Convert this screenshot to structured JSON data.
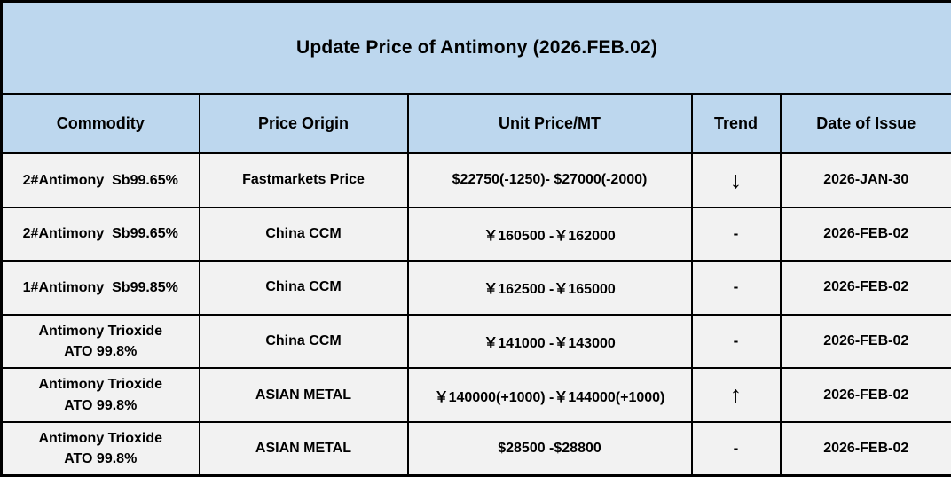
{
  "title": "Update Price of Antimony (2026.FEB.02)",
  "colors": {
    "header_bg": "#BDD7EE",
    "row_bg": "#F2F2F2",
    "border": "#000000",
    "text": "#000000"
  },
  "table": {
    "columns": [
      {
        "key": "commodity",
        "label": "Commodity"
      },
      {
        "key": "origin",
        "label": "Price Origin"
      },
      {
        "key": "price",
        "label": "Unit Price/MT"
      },
      {
        "key": "trend",
        "label": "Trend"
      },
      {
        "key": "date",
        "label": "Date of Issue"
      }
    ],
    "rows": [
      {
        "commodity": "2#Antimony  Sb99.65%",
        "origin": "Fastmarkets Price",
        "price": "$22750(-1250)- $27000(-2000)",
        "trend": "↓",
        "trend_name": "down-arrow",
        "date": "2026-JAN-30"
      },
      {
        "commodity": "2#Antimony  Sb99.65%",
        "origin": "China CCM",
        "price": "￥160500 -￥162000",
        "trend": "-",
        "trend_name": "flat",
        "date": "2026-FEB-02"
      },
      {
        "commodity": "1#Antimony  Sb99.85%",
        "origin": "China CCM",
        "price": "￥162500 -￥165000",
        "trend": "-",
        "trend_name": "flat",
        "date": "2026-FEB-02"
      },
      {
        "commodity": "Antimony Trioxide\nATO 99.8%",
        "origin": "China CCM",
        "price": "￥141000 -￥143000",
        "trend": "-",
        "trend_name": "flat",
        "date": "2026-FEB-02"
      },
      {
        "commodity": "Antimony Trioxide\nATO 99.8%",
        "origin": "ASIAN METAL",
        "price": "￥140000(+1000) -￥144000(+1000)",
        "trend": "↑",
        "trend_name": "up-arrow",
        "date": "2026-FEB-02"
      },
      {
        "commodity": "Antimony Trioxide\nATO 99.8%",
        "origin": "ASIAN METAL",
        "price": "$28500 -$28800",
        "trend": "-",
        "trend_name": "flat",
        "date": "2026-FEB-02"
      }
    ]
  }
}
